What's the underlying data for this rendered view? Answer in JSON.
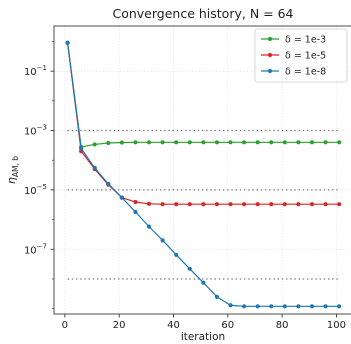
{
  "chart_data": {
    "type": "line",
    "title": "Convergence history, N = 64",
    "xlabel": "iteration",
    "ylabel": "η_{AM, b}",
    "ylabel_main": "η",
    "ylabel_sub": "AM, b",
    "yscale": "log",
    "xlim": [
      -4,
      105
    ],
    "ylim_log10": [
      -9.18,
      0.52
    ],
    "x_ticks": [
      0,
      20,
      40,
      60,
      80,
      100
    ],
    "x_tick_labels": [
      "0",
      "20",
      "40",
      "60",
      "80",
      "100"
    ],
    "y_ticks": [
      0.1,
      0.001,
      1e-05,
      1e-07
    ],
    "y_tick_labels": [
      {
        "base": "10",
        "exp": "−1"
      },
      {
        "base": "10",
        "exp": "−3"
      },
      {
        "base": "10",
        "exp": "−5"
      },
      {
        "base": "10",
        "exp": "−7"
      }
    ],
    "grid": true,
    "legend_position": "top-right",
    "reference_lines": [
      {
        "y": 0.001,
        "x_range": [
          1,
          101
        ]
      },
      {
        "y": 1e-05,
        "x_range": [
          1,
          101
        ]
      },
      {
        "y": 1e-08,
        "x_range": [
          1,
          101
        ]
      }
    ],
    "series": [
      {
        "name": "δ = 1e-3",
        "color": "#2ca02c",
        "x": [
          1,
          6,
          11,
          16,
          21,
          26,
          31,
          36,
          41,
          46,
          51,
          56,
          61,
          66,
          71,
          76,
          81,
          86,
          91,
          96,
          101
        ],
        "y": [
          0.9,
          0.00028,
          0.00034,
          0.00038,
          0.000395,
          0.0004,
          0.0004,
          0.0004,
          0.0004,
          0.0004,
          0.0004,
          0.0004,
          0.0004,
          0.0004,
          0.0004,
          0.0004,
          0.0004,
          0.0004,
          0.0004,
          0.0004,
          0.0004
        ]
      },
      {
        "name": "δ = 1e-5",
        "color": "#d62728",
        "x": [
          1,
          6,
          11,
          16,
          21,
          26,
          31,
          36,
          41,
          46,
          51,
          56,
          61,
          66,
          71,
          76,
          81,
          86,
          91,
          96,
          101
        ],
        "y": [
          0.9,
          0.0002,
          5e-05,
          1.5e-05,
          5.5e-06,
          3.9e-06,
          3.4e-06,
          3.3e-06,
          3.3e-06,
          3.3e-06,
          3.3e-06,
          3.3e-06,
          3.3e-06,
          3.3e-06,
          3.3e-06,
          3.3e-06,
          3.3e-06,
          3.3e-06,
          3.3e-06,
          3.3e-06,
          3.3e-06
        ]
      },
      {
        "name": "δ = 1e-8",
        "color": "#1f77b4",
        "x": [
          1,
          6,
          11,
          16,
          21,
          26,
          31,
          36,
          41,
          46,
          51,
          56,
          61,
          66,
          71,
          76,
          81,
          86,
          91,
          96,
          101
        ],
        "y": [
          0.9,
          0.00025,
          5.5e-05,
          1.6e-05,
          5.5e-06,
          1.8e-06,
          5.8e-07,
          2e-07,
          6.5e-08,
          2.2e-08,
          7.5e-09,
          2.5e-09,
          1.3e-09,
          1.2e-09,
          1.2e-09,
          1.2e-09,
          1.2e-09,
          1.2e-09,
          1.2e-09,
          1.2e-09,
          1.2e-09
        ]
      }
    ]
  }
}
